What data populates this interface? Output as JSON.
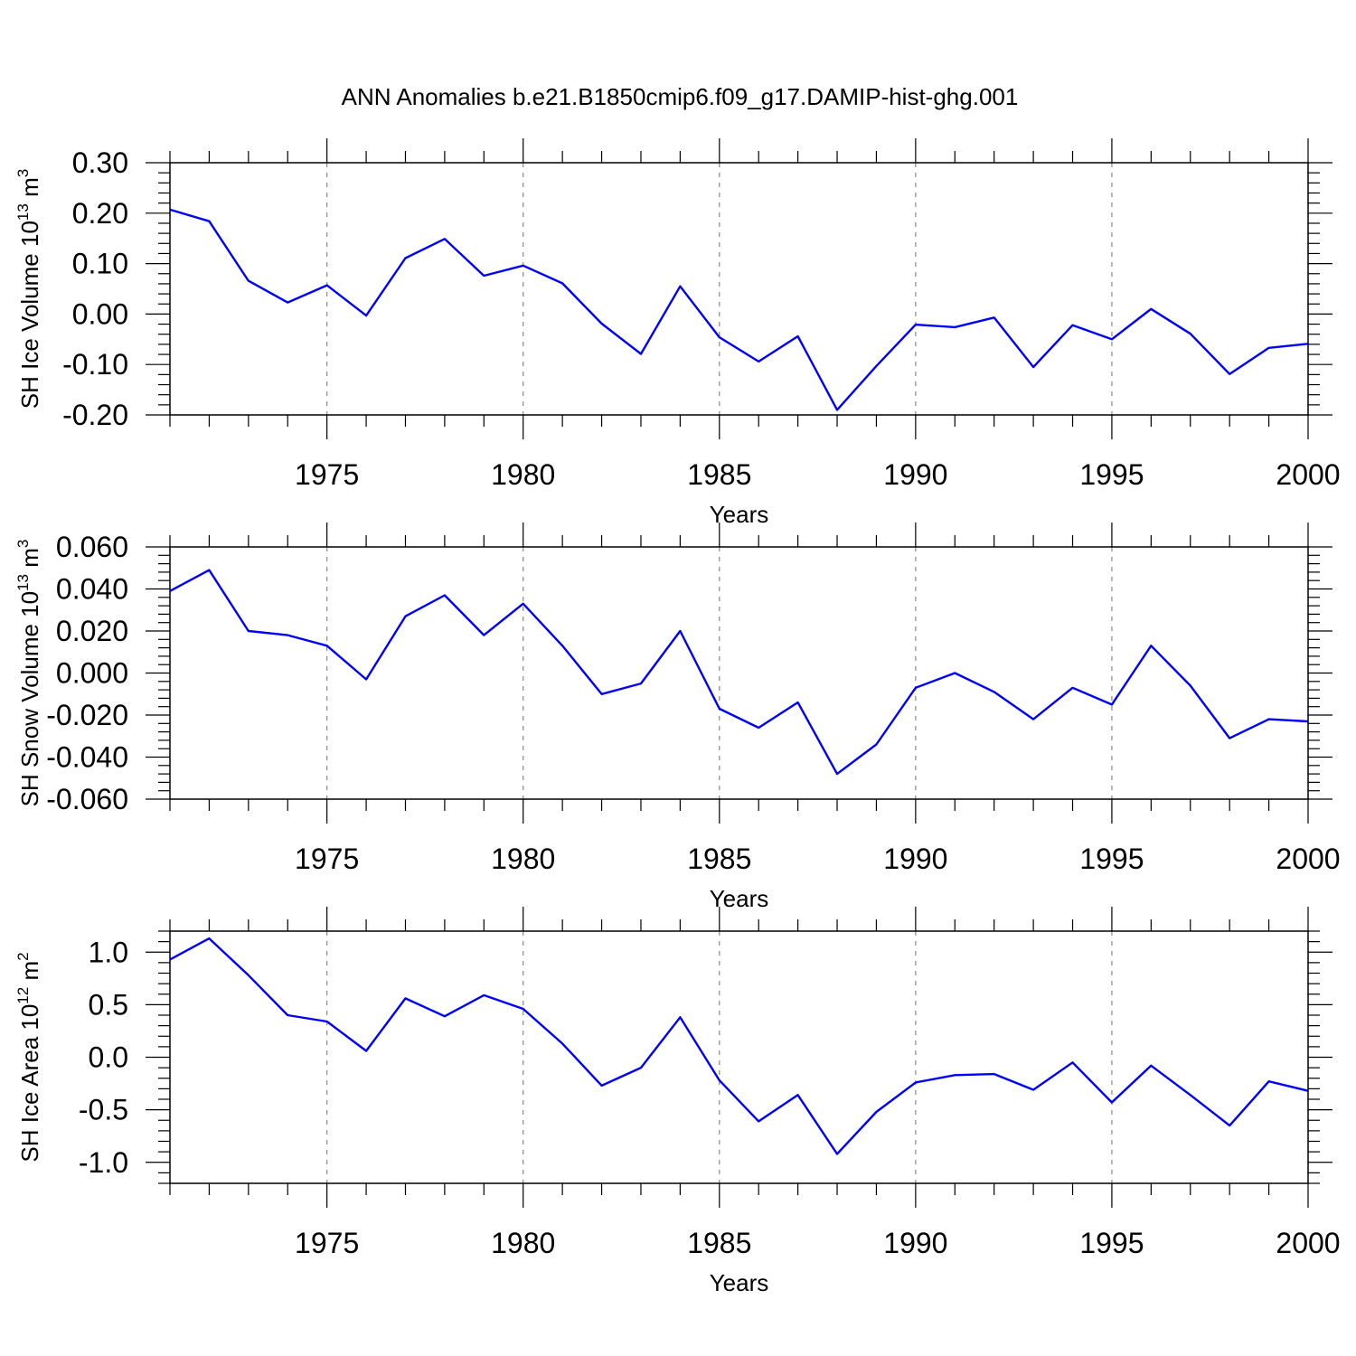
{
  "title": "ANN Anomalies b.e21.B1850cmip6.f09_g17.DAMIP-hist-ghg.001",
  "colors": {
    "line": "#0000ff",
    "axes": "#000000",
    "grid": "#888888"
  },
  "chart_data": [
    {
      "type": "line",
      "ylabel_base": "SH Ice Volume 10",
      "ylabel_exp": "13",
      "ylabel_unit": " m",
      "ylabel_unit_exp": "3",
      "xlabel": "Years",
      "xlim": [
        1971,
        2000
      ],
      "ylim": [
        -0.2,
        0.3
      ],
      "yticks": [
        -0.2,
        -0.1,
        0.0,
        0.1,
        0.2,
        0.3
      ],
      "ytick_labels": [
        "-0.20",
        "-0.10",
        "0.00",
        "0.10",
        "0.20",
        "0.30"
      ],
      "xticks": [
        1975,
        1980,
        1985,
        1990,
        1995,
        2000
      ],
      "xtick_labels": [
        "1975",
        "1980",
        "1985",
        "1990",
        "1995",
        "2000"
      ],
      "x": [
        1971,
        1972,
        1973,
        1974,
        1975,
        1976,
        1977,
        1978,
        1979,
        1980,
        1981,
        1982,
        1983,
        1984,
        1985,
        1986,
        1987,
        1988,
        1989,
        1990,
        1991,
        1992,
        1993,
        1994,
        1995,
        1996,
        1997,
        1998,
        1999,
        2000
      ],
      "series": [
        {
          "name": "SH Ice Volume",
          "values": [
            0.207,
            0.184,
            0.066,
            0.023,
            0.057,
            -0.003,
            0.111,
            0.149,
            0.076,
            0.096,
            0.061,
            -0.019,
            -0.079,
            0.055,
            -0.046,
            -0.094,
            -0.044,
            -0.19,
            -0.103,
            -0.021,
            -0.026,
            -0.007,
            -0.105,
            -0.022,
            -0.05,
            0.01,
            -0.039,
            -0.119,
            -0.067,
            -0.059
          ]
        }
      ]
    },
    {
      "type": "line",
      "ylabel_base": "SH Snow Volume 10",
      "ylabel_exp": "13",
      "ylabel_unit": " m",
      "ylabel_unit_exp": "3",
      "xlabel": "Years",
      "xlim": [
        1971,
        2000
      ],
      "ylim": [
        -0.06,
        0.06
      ],
      "yticks": [
        -0.06,
        -0.04,
        -0.02,
        0.0,
        0.02,
        0.04,
        0.06
      ],
      "ytick_labels": [
        "-0.060",
        "-0.040",
        "-0.020",
        "0.000",
        "0.020",
        "0.040",
        "0.060"
      ],
      "xticks": [
        1975,
        1980,
        1985,
        1990,
        1995,
        2000
      ],
      "xtick_labels": [
        "1975",
        "1980",
        "1985",
        "1990",
        "1995",
        "2000"
      ],
      "x": [
        1971,
        1972,
        1973,
        1974,
        1975,
        1976,
        1977,
        1978,
        1979,
        1980,
        1981,
        1982,
        1983,
        1984,
        1985,
        1986,
        1987,
        1988,
        1989,
        1990,
        1991,
        1992,
        1993,
        1994,
        1995,
        1996,
        1997,
        1998,
        1999,
        2000
      ],
      "series": [
        {
          "name": "SH Snow Volume",
          "values": [
            0.039,
            0.049,
            0.02,
            0.018,
            0.013,
            -0.003,
            0.027,
            0.037,
            0.018,
            0.033,
            0.013,
            -0.01,
            -0.005,
            0.02,
            -0.017,
            -0.026,
            -0.014,
            -0.048,
            -0.034,
            -0.007,
            0.0,
            -0.009,
            -0.022,
            -0.007,
            -0.015,
            0.013,
            -0.006,
            -0.031,
            -0.022,
            -0.023
          ]
        }
      ]
    },
    {
      "type": "line",
      "ylabel_base": "SH Ice Area 10",
      "ylabel_exp": "12",
      "ylabel_unit": " m",
      "ylabel_unit_exp": "2",
      "xlabel": "Years",
      "xlim": [
        1971,
        2000
      ],
      "ylim": [
        -1.2,
        1.2
      ],
      "yticks": [
        -1.0,
        -0.5,
        0.0,
        0.5,
        1.0
      ],
      "ytick_labels": [
        "-1.0",
        "-0.5",
        "0.0",
        "0.5",
        "1.0"
      ],
      "xticks": [
        1975,
        1980,
        1985,
        1990,
        1995,
        2000
      ],
      "xtick_labels": [
        "1975",
        "1980",
        "1985",
        "1990",
        "1995",
        "2000"
      ],
      "x": [
        1971,
        1972,
        1973,
        1974,
        1975,
        1976,
        1977,
        1978,
        1979,
        1980,
        1981,
        1982,
        1983,
        1984,
        1985,
        1986,
        1987,
        1988,
        1989,
        1990,
        1991,
        1992,
        1993,
        1994,
        1995,
        1996,
        1997,
        1998,
        1999,
        2000
      ],
      "series": [
        {
          "name": "SH Ice Area",
          "values": [
            0.93,
            1.13,
            0.78,
            0.4,
            0.34,
            0.06,
            0.56,
            0.39,
            0.59,
            0.46,
            0.13,
            -0.27,
            -0.1,
            0.38,
            -0.22,
            -0.61,
            -0.36,
            -0.92,
            -0.52,
            -0.24,
            -0.17,
            -0.16,
            -0.31,
            -0.05,
            -0.43,
            -0.08,
            -0.36,
            -0.65,
            -0.23,
            -0.32
          ]
        }
      ]
    }
  ]
}
